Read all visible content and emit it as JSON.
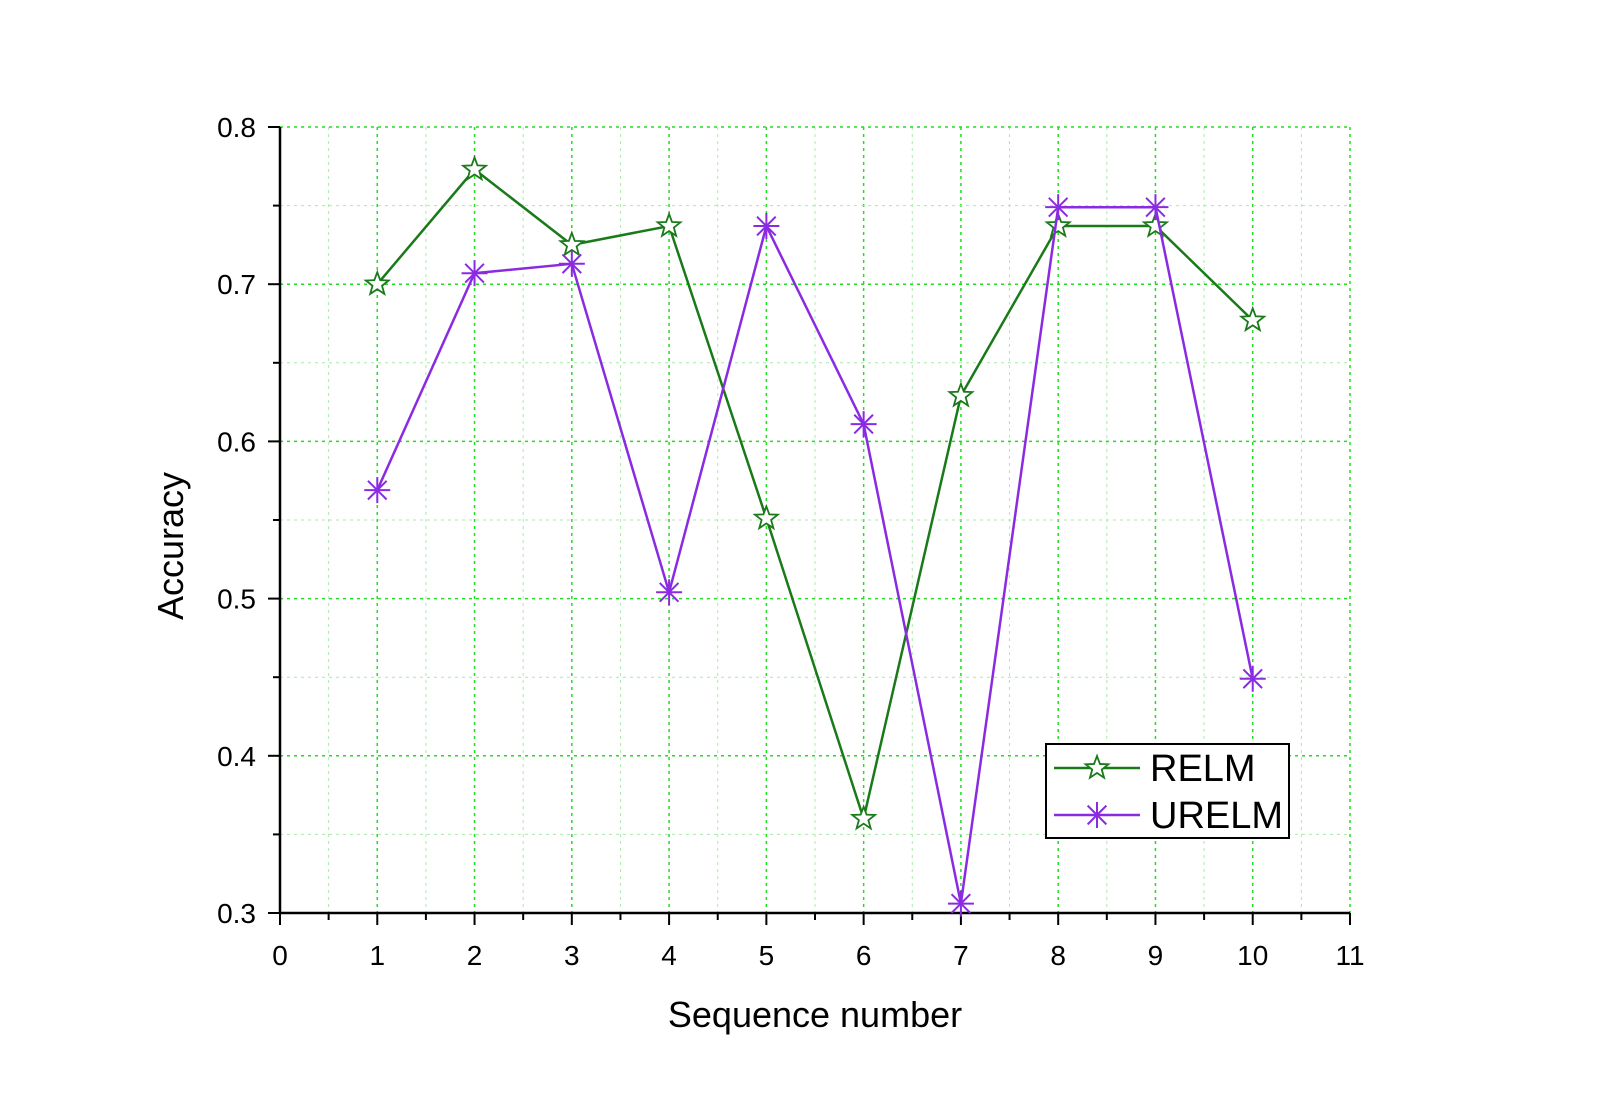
{
  "chart_data": {
    "type": "line",
    "title": "",
    "xlabel": "Sequence number",
    "ylabel": "Accuracy",
    "xlim": [
      0,
      11
    ],
    "ylim": [
      0.3,
      0.8
    ],
    "x_ticks": [
      0,
      1,
      2,
      3,
      4,
      5,
      6,
      7,
      8,
      9,
      10,
      11
    ],
    "x_tick_labels": [
      "0",
      "1",
      "2",
      "3",
      "4",
      "5",
      "6",
      "7",
      "8",
      "9",
      "10",
      "11"
    ],
    "y_ticks": [
      0.3,
      0.4,
      0.5,
      0.6,
      0.7,
      0.8
    ],
    "y_tick_labels": [
      "0.3",
      "0.4",
      "0.5",
      "0.6",
      "0.7",
      "0.8"
    ],
    "grid": true,
    "legend_position": "bottom-right",
    "x": [
      1,
      2,
      3,
      4,
      5,
      6,
      7,
      8,
      9,
      10
    ],
    "series": [
      {
        "name": "RELM",
        "color": "#1a7a1a",
        "marker": "star",
        "values": [
          0.7,
          0.773,
          0.725,
          0.737,
          0.551,
          0.36,
          0.629,
          0.737,
          0.737,
          0.677
        ]
      },
      {
        "name": "URELM",
        "color": "#8a2be2",
        "marker": "asterisk",
        "values": [
          0.569,
          0.707,
          0.713,
          0.504,
          0.737,
          0.611,
          0.306,
          0.749,
          0.749,
          0.449
        ]
      }
    ]
  }
}
